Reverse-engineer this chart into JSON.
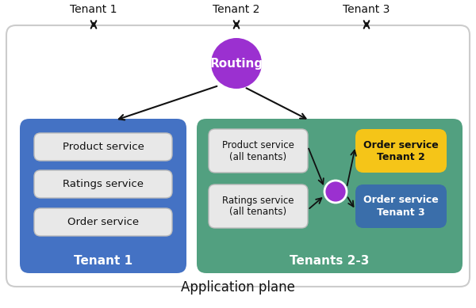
{
  "bg_color": "#ffffff",
  "routing_color": "#9b30d0",
  "routing_text": "Routing",
  "routing_text_color": "#ffffff",
  "tenant1_box_color": "#4472c4",
  "tenant1_label": "Tenant 1",
  "tenant1_label_color": "#ffffff",
  "tenant23_box_color": "#52a080",
  "tenant23_label": "Tenants 2-3",
  "tenant23_label_color": "#ffffff",
  "service_box_color": "#e8e8e8",
  "service_box_border": "#bbbbbb",
  "service_text_color": "#111111",
  "order_t2_color": "#f5c518",
  "order_t2_text_color": "#111111",
  "order_t2_label": "Order service\nTenant 2",
  "order_t3_color": "#3a6eaa",
  "order_t3_text_color": "#ffffff",
  "order_t3_label": "Order service\nTenant 3",
  "small_router_color": "#9b30d0",
  "app_plane_label": "Application plane",
  "tenant_labels": [
    "Tenant 1",
    "Tenant 2",
    "Tenant 3"
  ],
  "tenant1_services": [
    "Product service",
    "Ratings service",
    "Order service"
  ],
  "shared_service1": "Product service\n(all tenants)",
  "shared_service2": "Ratings service\n(all tenants)",
  "arrow_color": "#111111",
  "outer_border_color": "#cccccc",
  "tenant1_label_text": "Tenant 1",
  "tenant23_label_text": "Tenants 2-3"
}
